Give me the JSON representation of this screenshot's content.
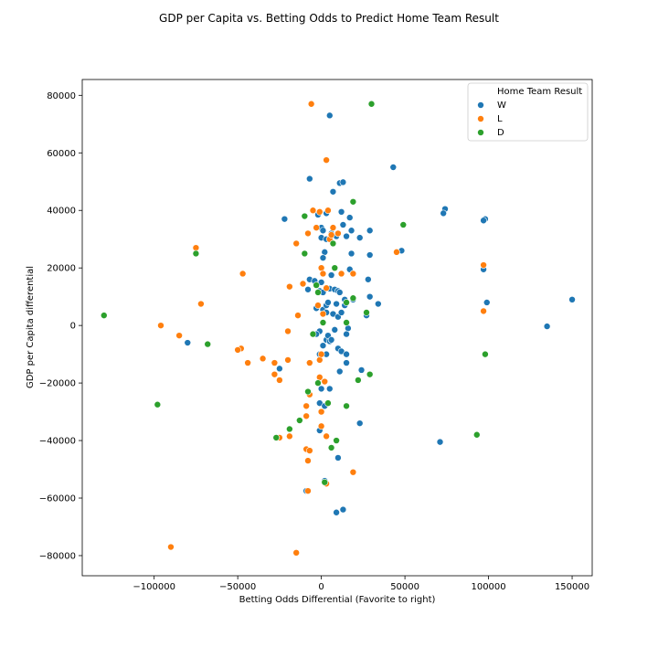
{
  "chart_data": {
    "type": "scatter",
    "title": "GDP per Capita vs. Betting Odds to Predict Home Team Result",
    "xlabel": "Betting Odds Differential (Favorite to right)",
    "ylabel": "GDP per Capita differential",
    "xlim": [
      -143000,
      162000
    ],
    "ylim": [
      -87000,
      85500
    ],
    "x_ticks": [
      -100000,
      -50000,
      0,
      50000,
      100000,
      150000
    ],
    "x_tick_labels": [
      "−100000",
      "−50000",
      "0",
      "50000",
      "100000",
      "150000"
    ],
    "y_ticks": [
      -80000,
      -60000,
      -40000,
      -20000,
      0,
      20000,
      40000,
      60000,
      80000
    ],
    "y_tick_labels": [
      "−80000",
      "−60000",
      "−40000",
      "−20000",
      "0",
      "20000",
      "40000",
      "60000",
      "80000"
    ],
    "grid": false,
    "legend": {
      "title": "Home Team Result",
      "placement": "top-right",
      "entries": [
        "W",
        "L",
        "D"
      ]
    },
    "colors": {
      "W": "#1f77b4",
      "L": "#ff7f0e",
      "D": "#2ca02c"
    },
    "series": [
      {
        "name": "W",
        "points": [
          [
            5000,
            73000
          ],
          [
            43000,
            55000
          ],
          [
            -7000,
            51000
          ],
          [
            11000,
            49500
          ],
          [
            13000,
            49800
          ],
          [
            7000,
            46500
          ],
          [
            74000,
            40500
          ],
          [
            73000,
            39000
          ],
          [
            98000,
            37000
          ],
          [
            97000,
            36500
          ],
          [
            -22000,
            37000
          ],
          [
            -2000,
            38500
          ],
          [
            3000,
            39000
          ],
          [
            12000,
            39500
          ],
          [
            17000,
            37500
          ],
          [
            0,
            34000
          ],
          [
            1000,
            33000
          ],
          [
            6000,
            32000
          ],
          [
            9000,
            31000
          ],
          [
            15000,
            31000
          ],
          [
            23000,
            30500
          ],
          [
            29000,
            33000
          ],
          [
            18000,
            33000
          ],
          [
            13000,
            35000
          ],
          [
            0,
            30500
          ],
          [
            3000,
            30000
          ],
          [
            2000,
            25500
          ],
          [
            1000,
            23500
          ],
          [
            18000,
            25000
          ],
          [
            29000,
            24500
          ],
          [
            48000,
            26000
          ],
          [
            97000,
            19500
          ],
          [
            99000,
            8000
          ],
          [
            150000,
            9000
          ],
          [
            135000,
            -300
          ],
          [
            -7000,
            16000
          ],
          [
            -4000,
            15500
          ],
          [
            0,
            15000
          ],
          [
            6000,
            17500
          ],
          [
            17000,
            19500
          ],
          [
            28000,
            16000
          ],
          [
            -8000,
            12500
          ],
          [
            -1000,
            12000
          ],
          [
            1000,
            11500
          ],
          [
            5000,
            12800
          ],
          [
            8000,
            12500
          ],
          [
            10000,
            12000
          ],
          [
            11000,
            11500
          ],
          [
            14000,
            9000
          ],
          [
            19000,
            9000
          ],
          [
            29000,
            10000
          ],
          [
            34000,
            7500
          ],
          [
            -3000,
            6000
          ],
          [
            1000,
            5500
          ],
          [
            3000,
            7000
          ],
          [
            4000,
            8000
          ],
          [
            9000,
            7500
          ],
          [
            14000,
            7000
          ],
          [
            3000,
            4500
          ],
          [
            7000,
            4000
          ],
          [
            10000,
            3000
          ],
          [
            12000,
            4500
          ],
          [
            27000,
            3500
          ],
          [
            -1000,
            -2000
          ],
          [
            3000,
            -5000
          ],
          [
            5000,
            -5500
          ],
          [
            1000,
            -7000
          ],
          [
            3000,
            -10000
          ],
          [
            -1000,
            -10000
          ],
          [
            10000,
            -8000
          ],
          [
            12000,
            -9000
          ],
          [
            15000,
            -10000
          ],
          [
            15000,
            -13000
          ],
          [
            11000,
            -16000
          ],
          [
            16000,
            -1000
          ],
          [
            15000,
            -3000
          ],
          [
            -3000,
            -3000
          ],
          [
            -80000,
            -6000
          ],
          [
            -25000,
            -15000
          ],
          [
            24000,
            -15500
          ],
          [
            0,
            -22000
          ],
          [
            5000,
            -22000
          ],
          [
            -1000,
            -27000
          ],
          [
            2000,
            -28000
          ],
          [
            23000,
            -34000
          ],
          [
            71000,
            -40500
          ],
          [
            -1000,
            -36500
          ],
          [
            10000,
            -46000
          ],
          [
            2000,
            -54000
          ],
          [
            -9000,
            -57500
          ],
          [
            13000,
            -64000
          ],
          [
            9000,
            -65000
          ],
          [
            4000,
            -3500
          ],
          [
            6000,
            -5000
          ],
          [
            8000,
            -1500
          ]
        ]
      },
      {
        "name": "L",
        "points": [
          [
            -6000,
            77000
          ],
          [
            3000,
            57500
          ],
          [
            -5000,
            40000
          ],
          [
            4000,
            40000
          ],
          [
            -1000,
            39500
          ],
          [
            -8000,
            32000
          ],
          [
            -3000,
            34000
          ],
          [
            7000,
            34000
          ],
          [
            10000,
            32000
          ],
          [
            -15000,
            28500
          ],
          [
            5000,
            30000
          ],
          [
            6000,
            31500
          ],
          [
            97000,
            21000
          ],
          [
            -75000,
            27000
          ],
          [
            45000,
            25500
          ],
          [
            -47000,
            18000
          ],
          [
            -19000,
            13500
          ],
          [
            -11000,
            14500
          ],
          [
            0,
            20000
          ],
          [
            1000,
            18000
          ],
          [
            12000,
            18000
          ],
          [
            19000,
            18000
          ],
          [
            -2000,
            7000
          ],
          [
            3000,
            13000
          ],
          [
            1000,
            4000
          ],
          [
            -72000,
            7500
          ],
          [
            -14000,
            3500
          ],
          [
            97000,
            5000
          ],
          [
            -96000,
            0
          ],
          [
            -85000,
            -3500
          ],
          [
            -20000,
            -2000
          ],
          [
            -48000,
            -8000
          ],
          [
            -44000,
            -13000
          ],
          [
            -35000,
            -11500
          ],
          [
            -28000,
            -13000
          ],
          [
            -28000,
            -17000
          ],
          [
            -25000,
            -19000
          ],
          [
            -20000,
            -12000
          ],
          [
            -7000,
            -13000
          ],
          [
            -1000,
            -12000
          ],
          [
            -1000,
            -18000
          ],
          [
            -7000,
            -24000
          ],
          [
            2000,
            -19500
          ],
          [
            -9000,
            -28000
          ],
          [
            -9000,
            -31500
          ],
          [
            0,
            -30000
          ],
          [
            0,
            -35000
          ],
          [
            3000,
            -38500
          ],
          [
            -19000,
            -38500
          ],
          [
            -25000,
            -39000
          ],
          [
            -9000,
            -43000
          ],
          [
            -8000,
            -47000
          ],
          [
            3000,
            -55000
          ],
          [
            -8000,
            -57500
          ],
          [
            19000,
            -51000
          ],
          [
            -90000,
            -77000
          ],
          [
            -15000,
            -79000
          ],
          [
            0,
            -10000
          ],
          [
            -50000,
            -8500
          ],
          [
            -7000,
            -43500
          ]
        ]
      },
      {
        "name": "D",
        "points": [
          [
            30000,
            77000
          ],
          [
            19000,
            43000
          ],
          [
            49000,
            35000
          ],
          [
            -10000,
            38000
          ],
          [
            -75000,
            25000
          ],
          [
            -10000,
            25000
          ],
          [
            7000,
            28500
          ],
          [
            8000,
            20000
          ],
          [
            -3000,
            14000
          ],
          [
            -2000,
            11500
          ],
          [
            15000,
            8000
          ],
          [
            19000,
            9500
          ],
          [
            27000,
            4500
          ],
          [
            1000,
            1000
          ],
          [
            15000,
            1000
          ],
          [
            -130000,
            3500
          ],
          [
            -68000,
            -6500
          ],
          [
            -5000,
            -3000
          ],
          [
            98000,
            -10000
          ],
          [
            -2000,
            -20000
          ],
          [
            22000,
            -19000
          ],
          [
            29000,
            -17000
          ],
          [
            -8000,
            -23000
          ],
          [
            4000,
            -27000
          ],
          [
            15000,
            -28000
          ],
          [
            -98000,
            -27500
          ],
          [
            -13000,
            -33000
          ],
          [
            -19000,
            -36000
          ],
          [
            -27000,
            -39000
          ],
          [
            9000,
            -40000
          ],
          [
            6000,
            -42500
          ],
          [
            93000,
            -38000
          ],
          [
            2000,
            -54500
          ]
        ]
      }
    ]
  }
}
